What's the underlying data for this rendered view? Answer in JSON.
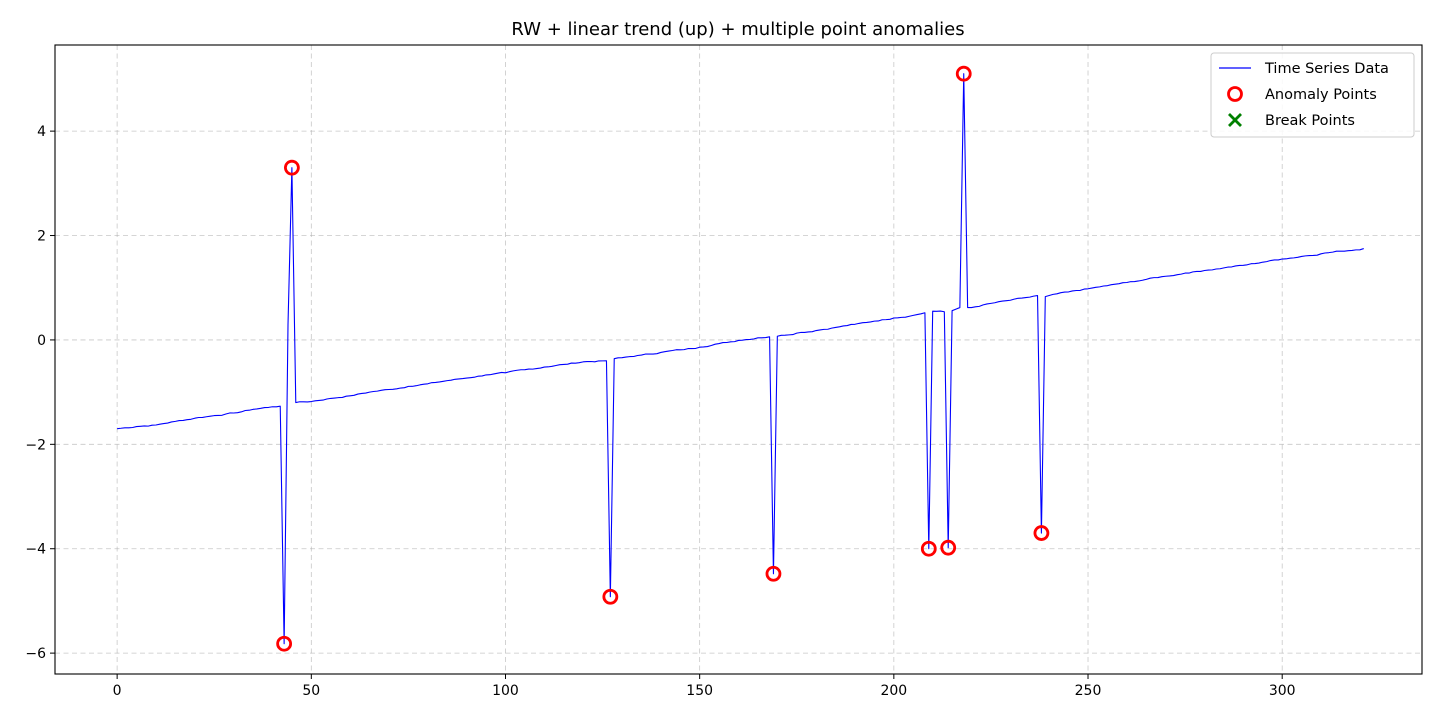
{
  "chart_data": {
    "type": "line",
    "title": "RW + linear trend (up) + multiple point anomalies",
    "xlabel": "",
    "ylabel": "",
    "xlim": [
      -16,
      336
    ],
    "ylim": [
      -6.4,
      5.65
    ],
    "x_ticks": [
      0,
      50,
      100,
      150,
      200,
      250,
      300
    ],
    "y_ticks": [
      -6,
      -4,
      -2,
      0,
      2,
      4
    ],
    "y_tick_labels": [
      "−6",
      "−4",
      "−2",
      "0",
      "2",
      "4"
    ],
    "grid": true,
    "legend_position": "top-right",
    "legend": [
      {
        "label": "Time Series Data",
        "marker": "line",
        "color": "#0000ff"
      },
      {
        "label": "Anomaly Points",
        "marker": "circle",
        "color": "#ff0000"
      },
      {
        "label": "Break Points",
        "marker": "x",
        "color": "#008000"
      }
    ],
    "series": [
      {
        "name": "Time Series Data",
        "color": "#0000ff",
        "trend": {
          "x_start": 0,
          "x_end": 321,
          "y_start": -1.7,
          "y_end": 1.75
        },
        "x": [
          0,
          5,
          10,
          15,
          20,
          25,
          30,
          35,
          40,
          42,
          43,
          44,
          45,
          46,
          50,
          55,
          60,
          65,
          70,
          75,
          80,
          85,
          90,
          95,
          100,
          105,
          110,
          115,
          120,
          126,
          127,
          128,
          130,
          135,
          140,
          145,
          150,
          155,
          160,
          165,
          168,
          169,
          170,
          175,
          180,
          185,
          190,
          195,
          200,
          205,
          208,
          209,
          210,
          213,
          214,
          215,
          217,
          218,
          219,
          220,
          225,
          230,
          235,
          237,
          238,
          239,
          245,
          250,
          255,
          260,
          265,
          270,
          275,
          280,
          285,
          290,
          295,
          300,
          305,
          310,
          315,
          321
        ],
        "y": [
          -1.7,
          -1.66,
          -1.63,
          -1.56,
          -1.5,
          -1.45,
          -1.4,
          -1.33,
          -1.28,
          -1.27,
          -5.82,
          0.3,
          3.3,
          -1.2,
          -1.18,
          -1.12,
          -1.07,
          -1.0,
          -0.95,
          -0.89,
          -0.84,
          -0.78,
          -0.73,
          -0.67,
          -0.63,
          -0.57,
          -0.52,
          -0.47,
          -0.42,
          -0.4,
          -4.92,
          -0.36,
          -0.34,
          -0.29,
          -0.24,
          -0.19,
          -0.14,
          -0.07,
          -0.01,
          0.04,
          0.06,
          -4.48,
          0.07,
          0.13,
          0.18,
          0.24,
          0.3,
          0.36,
          0.42,
          0.47,
          0.52,
          -4.0,
          0.55,
          0.54,
          -3.98,
          0.56,
          0.62,
          5.1,
          0.62,
          0.62,
          0.7,
          0.76,
          0.82,
          0.85,
          -3.7,
          0.83,
          0.92,
          0.98,
          1.04,
          1.1,
          1.16,
          1.22,
          1.28,
          1.33,
          1.38,
          1.43,
          1.49,
          1.55,
          1.6,
          1.65,
          1.7,
          1.75
        ]
      },
      {
        "name": "Anomaly Points",
        "color": "#ff0000",
        "x": [
          43,
          45,
          127,
          169,
          209,
          214,
          218,
          238
        ],
        "y": [
          -5.82,
          3.3,
          -4.92,
          -4.48,
          -4.0,
          -3.98,
          5.1,
          -3.7
        ]
      },
      {
        "name": "Break Points",
        "color": "#008000",
        "x": [],
        "y": []
      }
    ]
  }
}
